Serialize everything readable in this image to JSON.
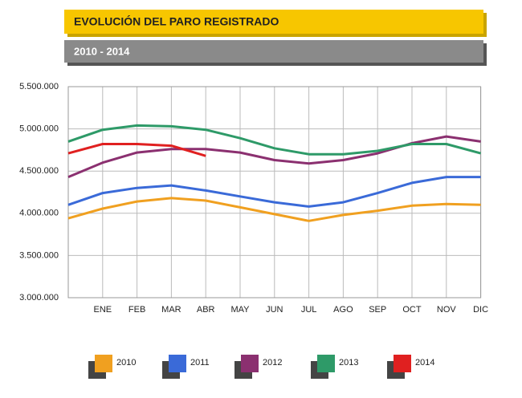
{
  "chart_data": {
    "type": "line",
    "title": "EVOLUCIÓN DEL PARO REGISTRADO",
    "subtitle": "2010 - 2014",
    "categories": [
      null,
      "ENE",
      "FEB",
      "MAR",
      "ABR",
      "MAY",
      "JUN",
      "JUL",
      "AGO",
      "SEP",
      "OCT",
      "NOV",
      "DIC"
    ],
    "series": [
      {
        "name": "2010",
        "color": "#f0a020",
        "values": [
          3940000,
          4055000,
          4140000,
          4180000,
          4150000,
          4070000,
          3990000,
          3910000,
          3980000,
          4030000,
          4090000,
          4110000,
          4100000
        ]
      },
      {
        "name": "2011",
        "color": "#3a6ad8",
        "values": [
          4100000,
          4240000,
          4300000,
          4330000,
          4270000,
          4200000,
          4130000,
          4080000,
          4130000,
          4240000,
          4360000,
          4430000,
          4430000
        ]
      },
      {
        "name": "2012",
        "color": "#8b3070",
        "values": [
          4430000,
          4600000,
          4720000,
          4760000,
          4760000,
          4720000,
          4630000,
          4590000,
          4630000,
          4710000,
          4830000,
          4910000,
          4850000
        ]
      },
      {
        "name": "2013",
        "color": "#2e9a68",
        "values": [
          4850000,
          4990000,
          5040000,
          5030000,
          4990000,
          4890000,
          4770000,
          4700000,
          4700000,
          4740000,
          4820000,
          4820000,
          4710000
        ]
      },
      {
        "name": "2014",
        "color": "#e02020",
        "values": [
          4710000,
          4820000,
          4820000,
          4800000,
          4680000,
          null,
          null,
          null,
          null,
          null,
          null,
          null,
          null
        ]
      }
    ],
    "ylim": [
      3000000,
      5500000
    ],
    "yticks": [
      {
        "value": 3000000,
        "label": "3.000.000"
      },
      {
        "value": 3500000,
        "label": "3.500.000"
      },
      {
        "value": 4000000,
        "label": "4.000.000"
      },
      {
        "value": 4500000,
        "label": "4.500.000"
      },
      {
        "value": 5000000,
        "label": "5.000.000"
      },
      {
        "value": 5500000,
        "label": "5.500.000"
      }
    ],
    "grid": true
  }
}
